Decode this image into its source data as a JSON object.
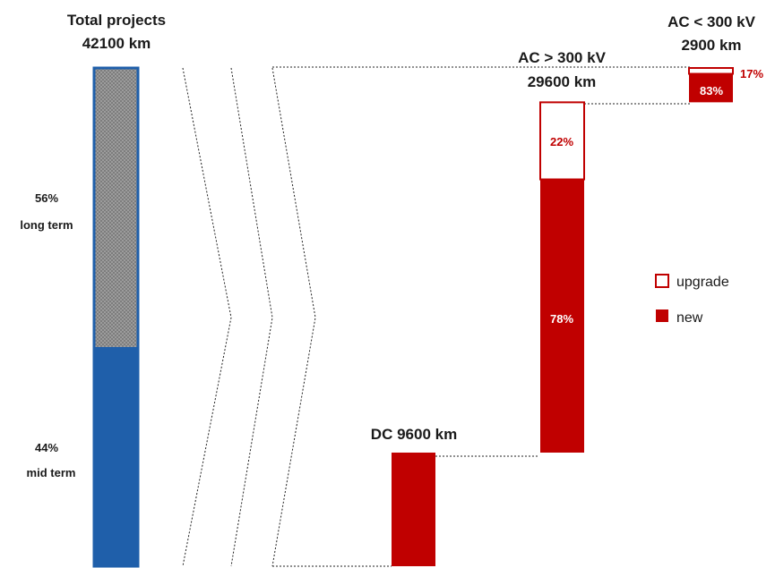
{
  "colors": {
    "blue": "#1f5faa",
    "grey_hatch": "#8a8a8a",
    "red": "#c00000",
    "white": "#ffffff"
  },
  "labels": {
    "total_line1": "Total projects",
    "total_line2": "42100 km",
    "long_pct": "56%",
    "long_label": "long term",
    "mid_pct": "44%",
    "mid_label": "mid term",
    "dc_title": "DC 9600 km",
    "ac_high_line1": "AC > 300 kV",
    "ac_high_line2": "29600 km",
    "ac_high_upgrade_pct": "22%",
    "ac_high_new_pct": "78%",
    "ac_low_line1": "AC < 300 kV",
    "ac_low_line2": "2900 km",
    "ac_low_upgrade_pct": "17%",
    "ac_low_new_pct": "83%"
  },
  "legend": {
    "upgrade": "upgrade",
    "new": "new"
  },
  "chart_data": {
    "type": "bar",
    "total_km": 42100,
    "bars": [
      {
        "name": "Total projects",
        "km": 42100,
        "segments": [
          {
            "name": "mid term",
            "share": 0.44
          },
          {
            "name": "long term",
            "share": 0.56
          }
        ]
      },
      {
        "name": "DC",
        "km": 9600,
        "segments": [
          {
            "name": "new",
            "share": 1.0
          }
        ]
      },
      {
        "name": "AC > 300 kV",
        "km": 29600,
        "segments": [
          {
            "name": "new",
            "share": 0.78
          },
          {
            "name": "upgrade",
            "share": 0.22
          }
        ]
      },
      {
        "name": "AC < 300 kV",
        "km": 2900,
        "segments": [
          {
            "name": "new",
            "share": 0.83
          },
          {
            "name": "upgrade",
            "share": 0.17
          }
        ]
      }
    ]
  }
}
